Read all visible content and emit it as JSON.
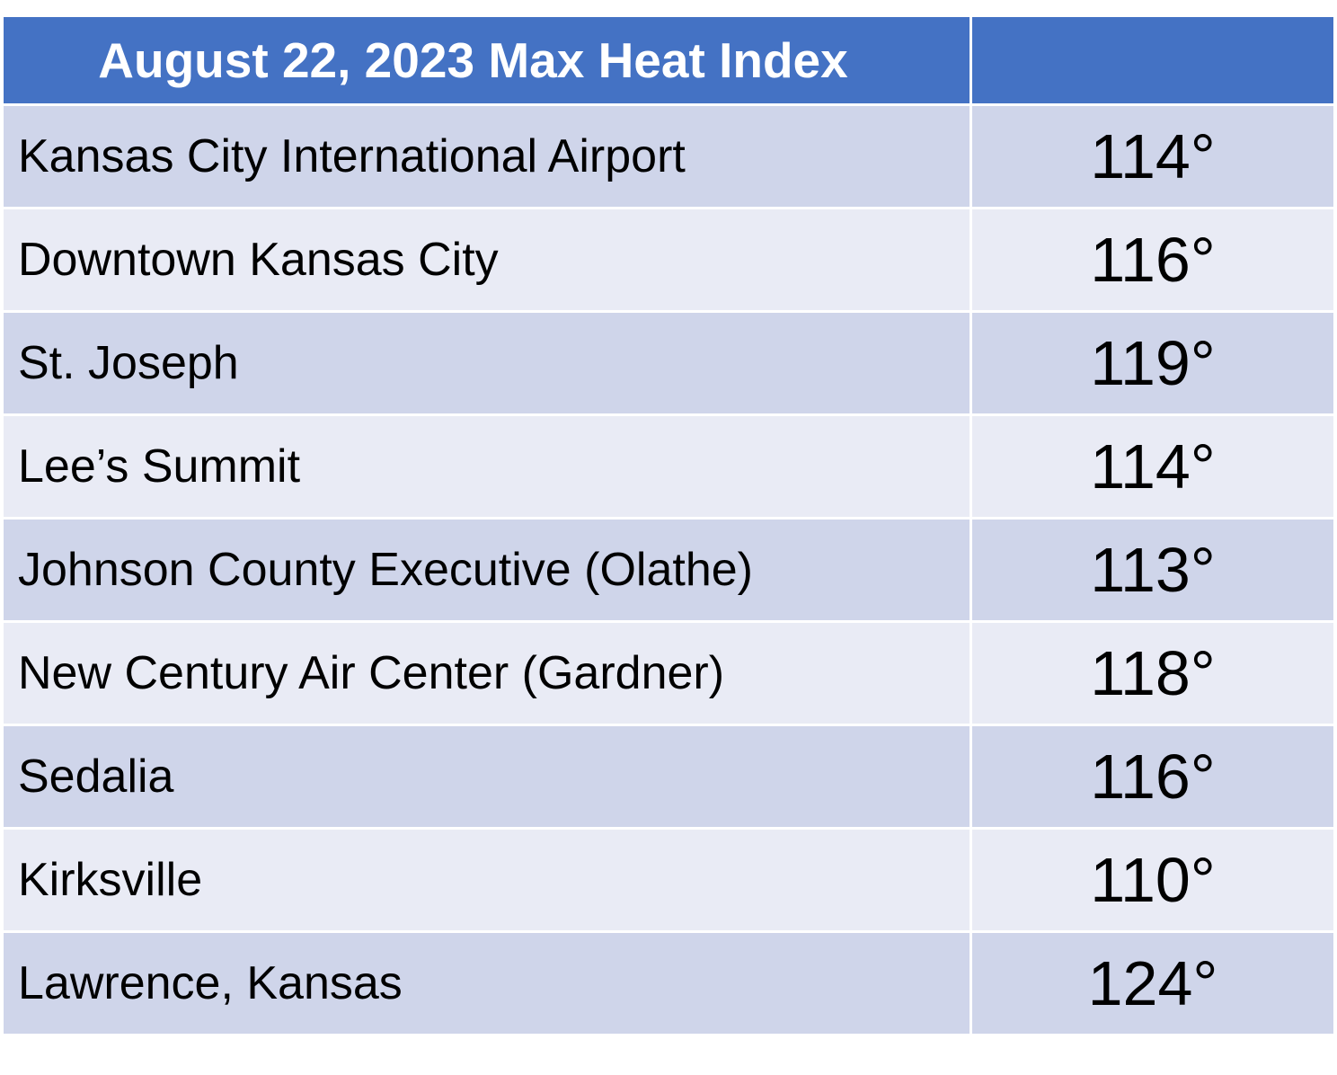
{
  "header": {
    "title": "August 22, 2023 Max Heat Index"
  },
  "table": {
    "rows": [
      [
        "Kansas City International Airport",
        "114°"
      ],
      [
        "Downtown Kansas City",
        "116°"
      ],
      [
        "St. Joseph",
        "119°"
      ],
      [
        "Lee’s Summit",
        "114°"
      ],
      [
        "Johnson County Executive (Olathe)",
        "113°"
      ],
      [
        "New Century Air Center (Gardner)",
        "118°"
      ],
      [
        "Sedalia",
        "116°"
      ],
      [
        "Kirksville",
        "110°"
      ],
      [
        "Lawrence, Kansas",
        "124°"
      ]
    ]
  }
}
